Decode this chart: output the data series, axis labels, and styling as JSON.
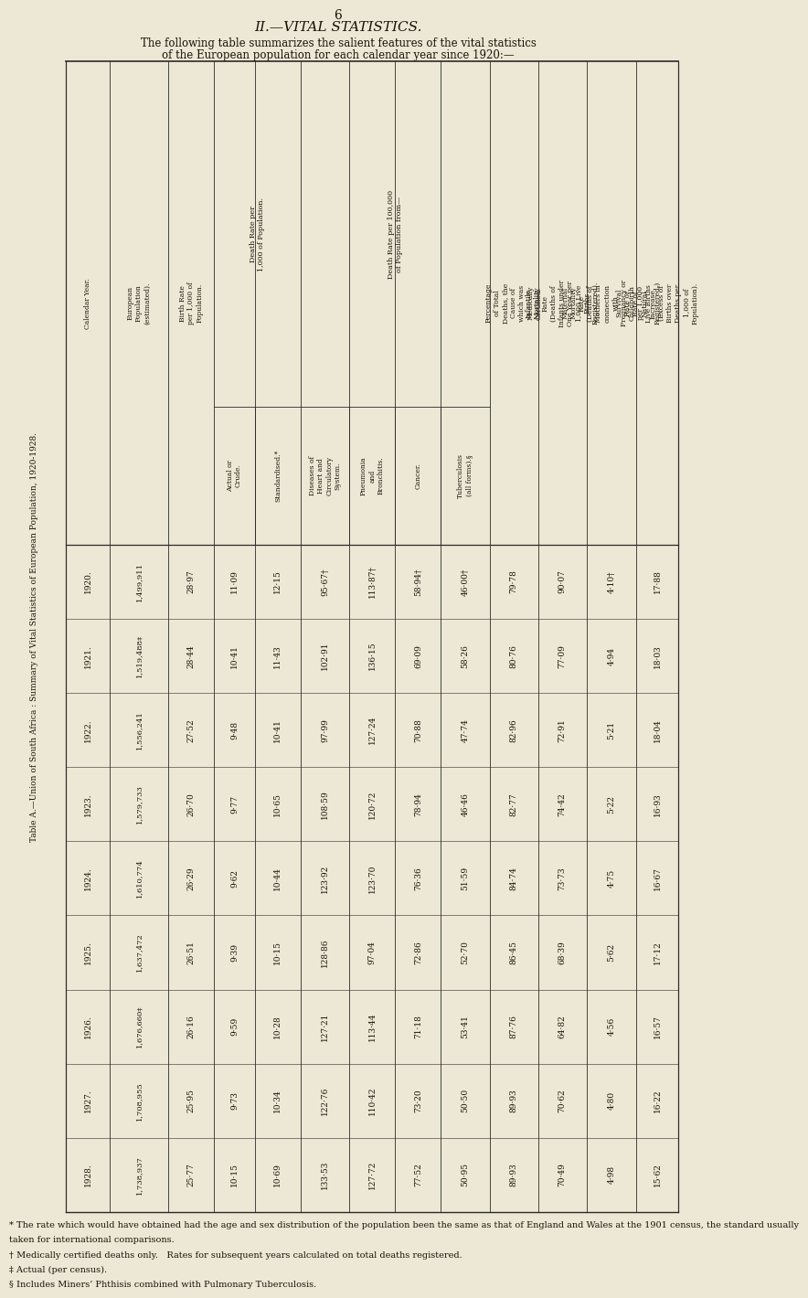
{
  "page_number": "6",
  "section_title": "II.—VITAL STATISTICS.",
  "intro_text_1": "The following table summarizes the salient features of the vital statistics",
  "intro_text_2": "of the European population for each calendar year since 1920:—",
  "table_title": "Table A.—Union of South Africa : Summary of Vital Statistics of European Population, 1920-1928.",
  "years": [
    "1920.",
    "1921.",
    "1922.",
    "1923.",
    "1924.",
    "1925.",
    "1926.",
    "1927.",
    "1928."
  ],
  "european_pop": [
    "1,499,911",
    "1,519,488‡",
    "1,556,241",
    "1,579,733",
    "1,610,774",
    "1,637,472",
    "1,676,660‡",
    "1,708,955",
    "1,738,937"
  ],
  "birth_rate": [
    "28·97",
    "28·44",
    "27·52",
    "26·70",
    "26·29",
    "26·51",
    "26·16",
    "25·95",
    "25·77"
  ],
  "death_rate_actual": [
    "11·09",
    "10·41",
    "9·48",
    "9·77",
    "9·62",
    "9·39",
    "9·59",
    "9·73",
    "10·15"
  ],
  "death_rate_std": [
    "12·15",
    "11·43",
    "10·41",
    "10·65",
    "10·44",
    "10·15",
    "10·28",
    "10·34",
    "10·69"
  ],
  "diseases_heart": [
    "95·67†",
    "102·91",
    "97·99",
    "108·59",
    "123·92",
    "128·86",
    "127·21",
    "122·76",
    "133·53"
  ],
  "pneumonia": [
    "113·87†",
    "136·15",
    "127·24",
    "120·72",
    "123·70",
    "97·04",
    "113·44",
    "110·42",
    "127·72"
  ],
  "cancer": [
    "58·94†",
    "69·09",
    "70·88",
    "78·94",
    "76·36",
    "72·86",
    "71·18",
    "73·20",
    "77·52"
  ],
  "tuberculosis": [
    "46·00†",
    "58·26",
    "47·74",
    "46·46",
    "51·59",
    "52·70",
    "53·41",
    "50·50",
    "50·95"
  ],
  "pct_certified": [
    "79·78",
    "80·76",
    "82·96",
    "82·77",
    "84·74",
    "86·45",
    "87·76",
    "89·93",
    "89·93"
  ],
  "infantile_mortality": [
    "90·07",
    "77·09",
    "72·91",
    "74·42",
    "73·73",
    "68·39",
    "64·82",
    "70·62",
    "70·49"
  ],
  "maternal_mortality": [
    "4·10†",
    "4·94",
    "5·21",
    "5·22",
    "4·75",
    "5·62",
    "4·56",
    "4·80",
    "4·98"
  ],
  "survival_rate": [
    "17·88",
    "18·03",
    "18·04",
    "16·93",
    "16·67",
    "17·12",
    "16·57",
    "16·22",
    "15·62"
  ],
  "footnote1": "* The rate which would have obtained had the age and sex distribution of the population been the same as that of England and Wales at the 1901 census, the standard usually",
  "footnote1b": "taken for international comparisons.",
  "footnote2": "† Medically certified deaths only.   Rates for subsequent years calculated on total deaths registered.",
  "footnote3": "‡ Actual (per census).",
  "footnote4": "§ Includes Miners’ Phthisis combined with Pulmonary Tuberculosis.",
  "bg_color": "#ede8d5",
  "text_color": "#1a1208",
  "line_color": "#2a2a2a",
  "header_row1": "Death Rate per\n1,000 of Population.",
  "header_row1b": "Death Rate per 100,000\nof Population from—"
}
